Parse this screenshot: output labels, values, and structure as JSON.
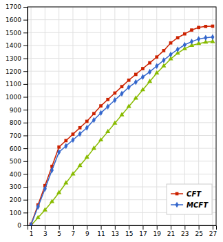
{
  "chart_data": {
    "type": "line",
    "x": [
      1,
      2,
      3,
      4,
      5,
      6,
      7,
      8,
      9,
      10,
      11,
      12,
      13,
      14,
      15,
      16,
      17,
      18,
      19,
      20,
      21,
      22,
      23,
      24,
      25,
      26,
      27
    ],
    "series": [
      {
        "color": "#88BB00",
        "marker": "triangle",
        "values": [
          0,
          60,
          120,
          185,
          255,
          330,
          400,
          465,
          530,
          600,
          665,
          730,
          795,
          860,
          925,
          990,
          1055,
          1120,
          1185,
          1240,
          1295,
          1340,
          1375,
          1400,
          1415,
          1425,
          1430
        ]
      },
      {
        "name": "CFT",
        "color": "#CC2200",
        "marker": "square",
        "values": [
          10,
          160,
          310,
          460,
          610,
          660,
          710,
          760,
          810,
          870,
          930,
          980,
          1030,
          1080,
          1130,
          1175,
          1220,
          1265,
          1310,
          1360,
          1420,
          1460,
          1490,
          1520,
          1540,
          1548,
          1550
        ]
      },
      {
        "name": "MCFT",
        "color": "#3366CC",
        "marker": "diamond",
        "values": [
          5,
          145,
          285,
          430,
          570,
          618,
          665,
          712,
          760,
          820,
          875,
          925,
          975,
          1025,
          1075,
          1115,
          1155,
          1195,
          1240,
          1285,
          1330,
          1370,
          1405,
          1430,
          1450,
          1460,
          1465
        ]
      }
    ],
    "xlim": [
      0.5,
      27.5
    ],
    "xticks": [
      1,
      3,
      5,
      7,
      9,
      11,
      13,
      15,
      17,
      19,
      21,
      23,
      25,
      27
    ],
    "ylim": [
      0,
      1700
    ],
    "yticks": [
      0,
      100,
      200,
      300,
      400,
      500,
      600,
      700,
      800,
      900,
      1000,
      1100,
      1200,
      1300,
      1400,
      1500,
      1600,
      1700
    ],
    "grid": true,
    "legend": "lower right"
  }
}
